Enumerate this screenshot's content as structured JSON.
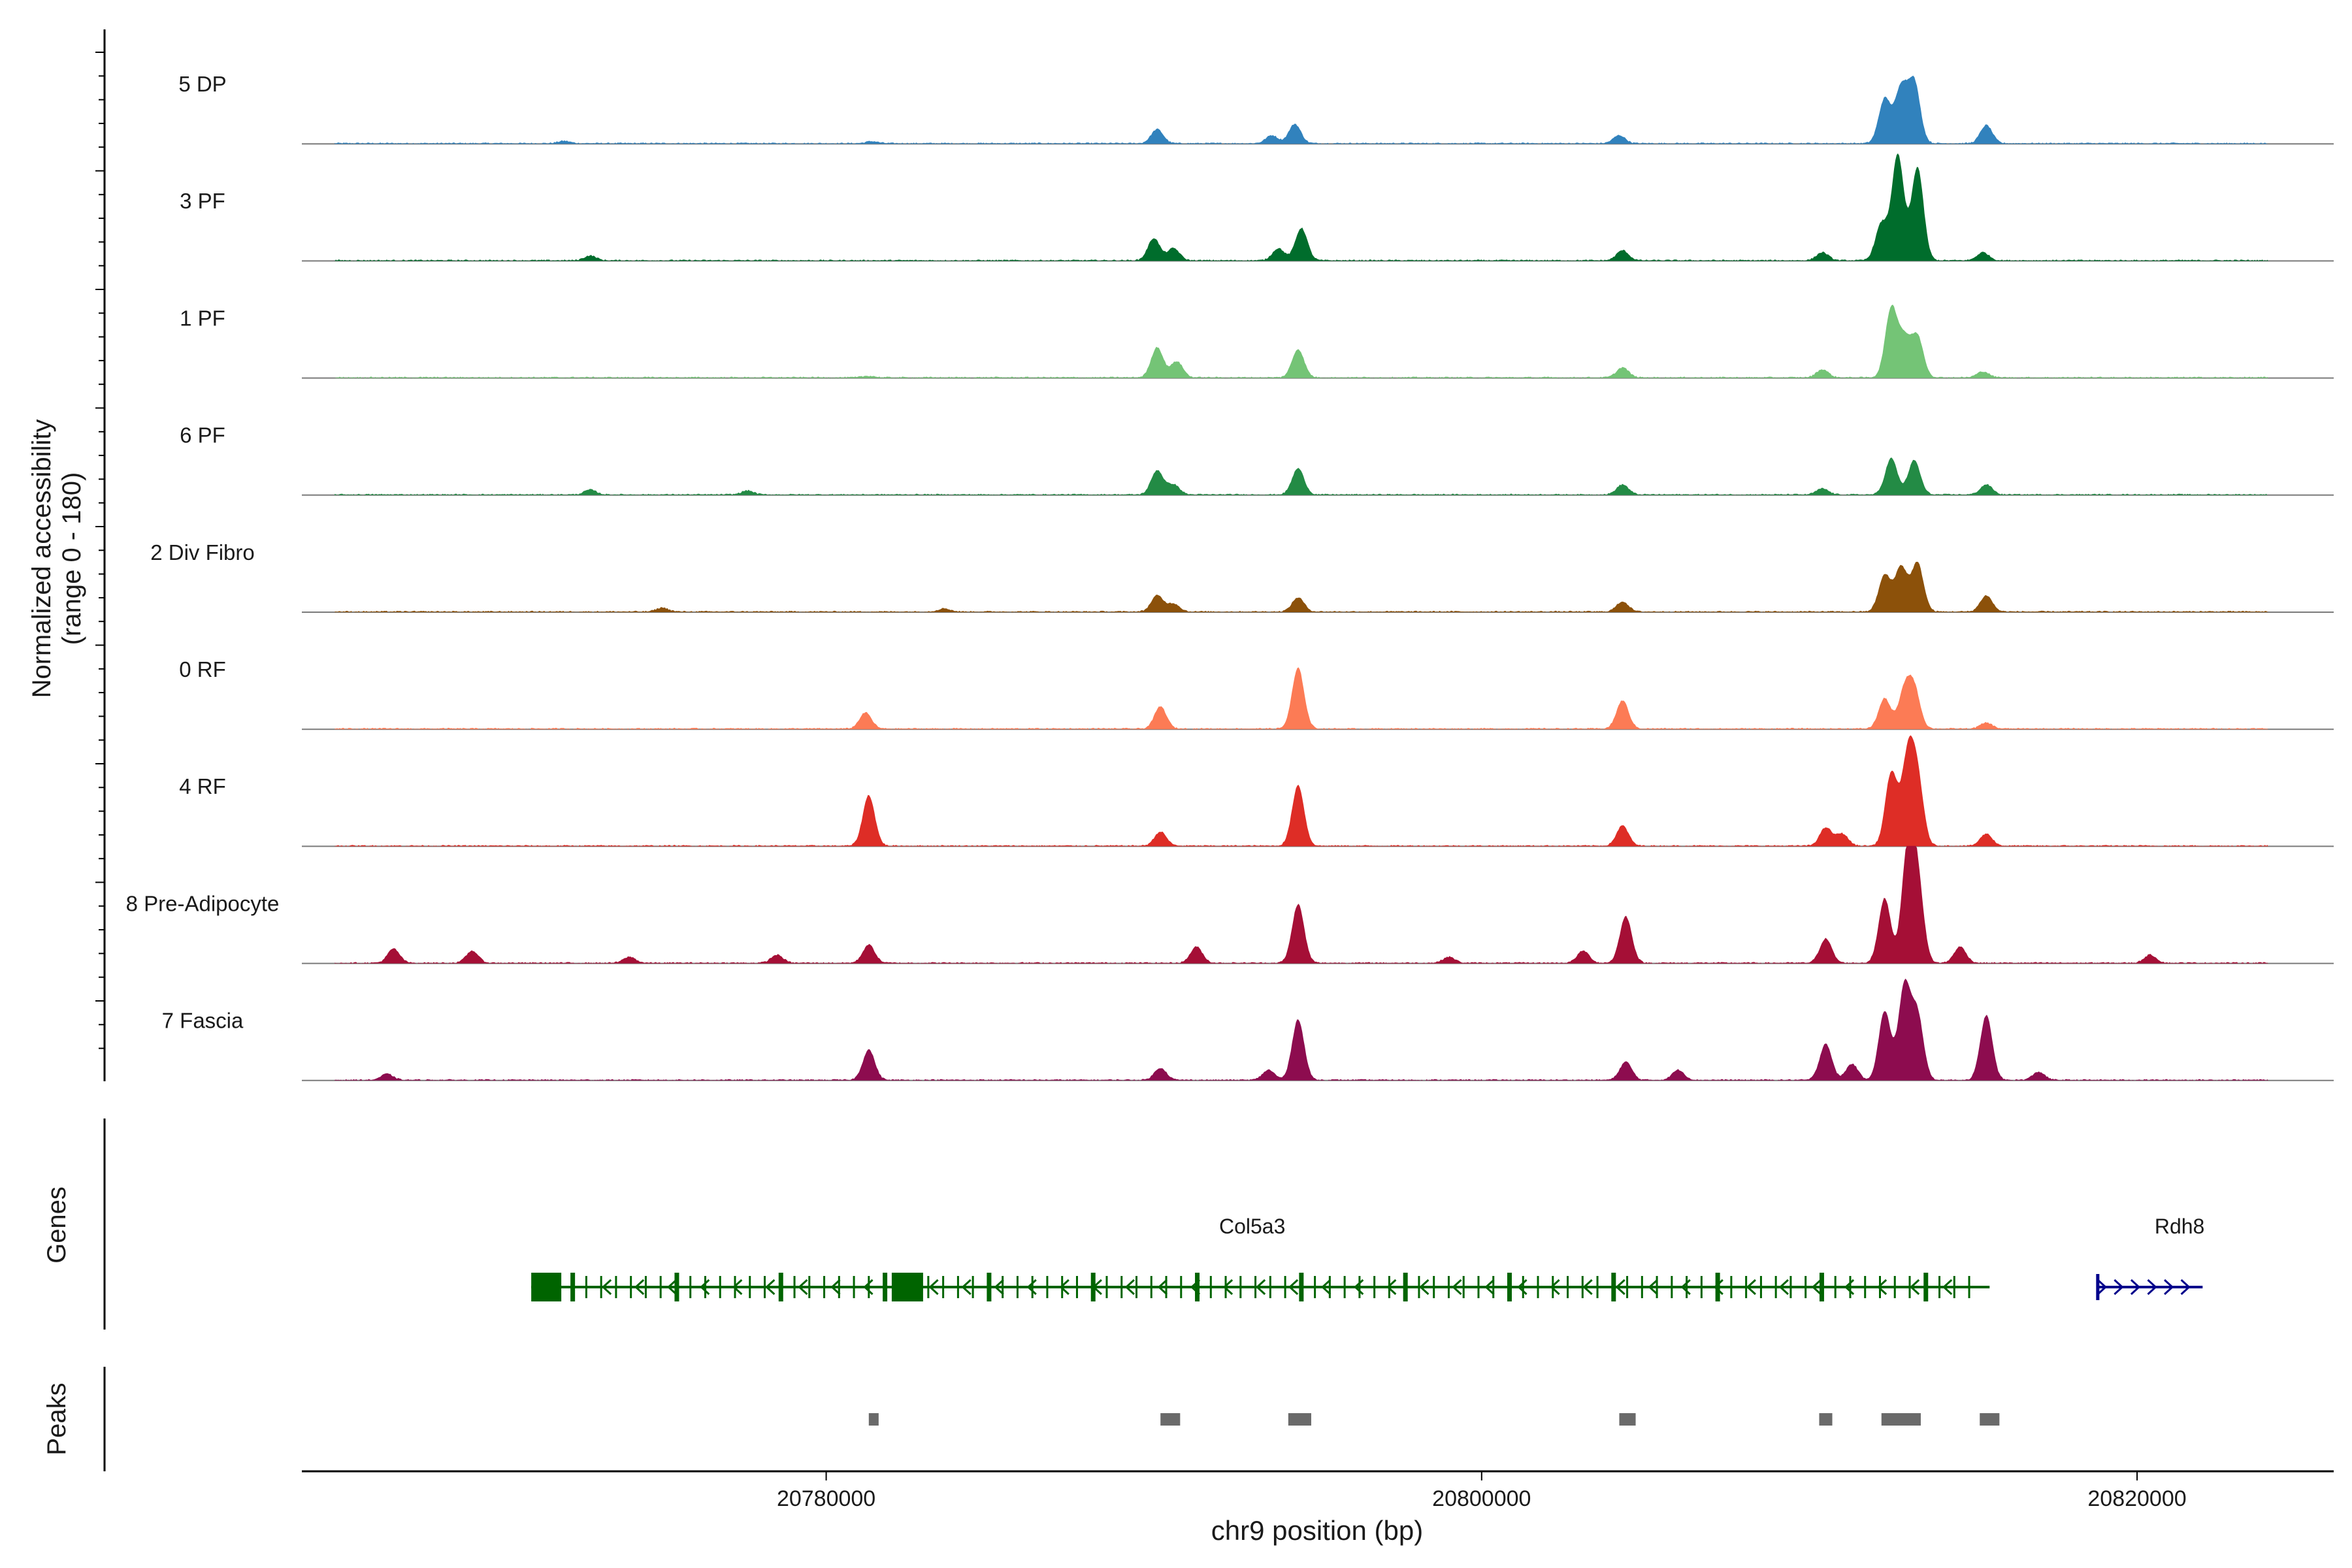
{
  "chart_data": {
    "type": "area",
    "title": "",
    "ylabel_line1": "Normalized accessibility",
    "ylabel_line2": "(range 0 - 180)",
    "xlabel": "chr9 position (bp)",
    "xlim": [
      20764000,
      20826000
    ],
    "ylim": [
      0,
      180
    ],
    "x_ticks": [
      20780000,
      20800000,
      20820000
    ],
    "x_tick_labels": [
      "20780000",
      "20800000",
      "20820000"
    ],
    "tracks": [
      {
        "name": "5 DP",
        "color": "#3182bd",
        "peaks": [
          [
            20790100,
            35
          ],
          [
            20793600,
            20
          ],
          [
            20794300,
            48
          ],
          [
            20804200,
            20
          ],
          [
            20812300,
            110
          ],
          [
            20812800,
            135
          ],
          [
            20813200,
            150
          ],
          [
            20815400,
            45
          ],
          [
            20781400,
            5
          ],
          [
            20772000,
            6
          ]
        ]
      },
      {
        "name": "3 PF",
        "color": "#006d2c",
        "peaks": [
          [
            20790000,
            55
          ],
          [
            20790600,
            30
          ],
          [
            20793800,
            30
          ],
          [
            20794500,
            80
          ],
          [
            20804300,
            25
          ],
          [
            20810400,
            20
          ],
          [
            20812200,
            90
          ],
          [
            20812700,
            260
          ],
          [
            20813300,
            230
          ],
          [
            20815300,
            20
          ],
          [
            20772800,
            12
          ]
        ]
      },
      {
        "name": "1 PF",
        "color": "#74c476",
        "peaks": [
          [
            20790100,
            75
          ],
          [
            20790700,
            40
          ],
          [
            20794400,
            70
          ],
          [
            20804300,
            25
          ],
          [
            20810400,
            20
          ],
          [
            20812500,
            170
          ],
          [
            20812900,
            90
          ],
          [
            20813300,
            100
          ],
          [
            20815300,
            15
          ],
          [
            20781300,
            4
          ]
        ]
      },
      {
        "name": "6 PF",
        "color": "#238b45",
        "peaks": [
          [
            20790100,
            60
          ],
          [
            20790600,
            25
          ],
          [
            20794400,
            65
          ],
          [
            20804300,
            25
          ],
          [
            20810400,
            15
          ],
          [
            20812500,
            90
          ],
          [
            20813200,
            85
          ],
          [
            20815400,
            25
          ],
          [
            20772800,
            12
          ],
          [
            20777600,
            10
          ]
        ]
      },
      {
        "name": "2 Div Fibro",
        "color": "#8c510a",
        "peaks": [
          [
            20790100,
            40
          ],
          [
            20790600,
            20
          ],
          [
            20794400,
            35
          ],
          [
            20804300,
            25
          ],
          [
            20812300,
            90
          ],
          [
            20812800,
            110
          ],
          [
            20813300,
            120
          ],
          [
            20815400,
            40
          ],
          [
            20775000,
            10
          ],
          [
            20783600,
            8
          ]
        ]
      },
      {
        "name": "0 RF",
        "color": "#fc7b55",
        "peaks": [
          [
            20781200,
            40
          ],
          [
            20790200,
            55
          ],
          [
            20794400,
            150
          ],
          [
            20804300,
            70
          ],
          [
            20812300,
            75
          ],
          [
            20812900,
            90
          ],
          [
            20813200,
            95
          ],
          [
            20815400,
            15
          ]
        ]
      },
      {
        "name": "4 RF",
        "color": "#de2d26",
        "peaks": [
          [
            20781300,
            125
          ],
          [
            20790200,
            35
          ],
          [
            20794400,
            150
          ],
          [
            20804300,
            50
          ],
          [
            20810500,
            45
          ],
          [
            20811000,
            30
          ],
          [
            20812500,
            180
          ],
          [
            20813000,
            210
          ],
          [
            20813300,
            160
          ],
          [
            20815400,
            30
          ]
        ]
      },
      {
        "name": "8 Pre-Adipocyte",
        "color": "#a50f36",
        "peaks": [
          [
            20766800,
            35
          ],
          [
            20769200,
            30
          ],
          [
            20781300,
            45
          ],
          [
            20791300,
            40
          ],
          [
            20794400,
            145
          ],
          [
            20803100,
            30
          ],
          [
            20804400,
            115
          ],
          [
            20810500,
            60
          ],
          [
            20812300,
            160
          ],
          [
            20813000,
            270
          ],
          [
            20813300,
            200
          ],
          [
            20814600,
            40
          ],
          [
            20820400,
            20
          ],
          [
            20774000,
            15
          ],
          [
            20778500,
            20
          ],
          [
            20799000,
            15
          ]
        ]
      },
      {
        "name": "7 Fascia",
        "color": "#8d0c4f",
        "peaks": [
          [
            20766600,
            15
          ],
          [
            20781300,
            75
          ],
          [
            20790200,
            30
          ],
          [
            20794400,
            150
          ],
          [
            20804400,
            45
          ],
          [
            20806000,
            25
          ],
          [
            20810500,
            90
          ],
          [
            20811300,
            40
          ],
          [
            20812300,
            170
          ],
          [
            20812900,
            230
          ],
          [
            20813300,
            160
          ],
          [
            20815400,
            160
          ],
          [
            20817000,
            20
          ],
          [
            20793500,
            25
          ]
        ]
      }
    ],
    "genes_label": "Genes",
    "genes": [
      {
        "name": "Col5a3",
        "start": 20771000,
        "end": 20815500,
        "strand": "-",
        "color": "#006400"
      },
      {
        "name": "Rdh8",
        "start": 20818800,
        "end": 20822000,
        "strand": "+",
        "color": "#00008b"
      }
    ],
    "peaks_label": "Peaks",
    "peak_regions": [
      [
        20781300,
        20781600
      ],
      [
        20790200,
        20790800
      ],
      [
        20794100,
        20794800
      ],
      [
        20804200,
        20804700
      ],
      [
        20810300,
        20810700
      ],
      [
        20812200,
        20813400
      ],
      [
        20815200,
        20815800
      ]
    ],
    "peak_region_color": "#6a6a6a"
  }
}
